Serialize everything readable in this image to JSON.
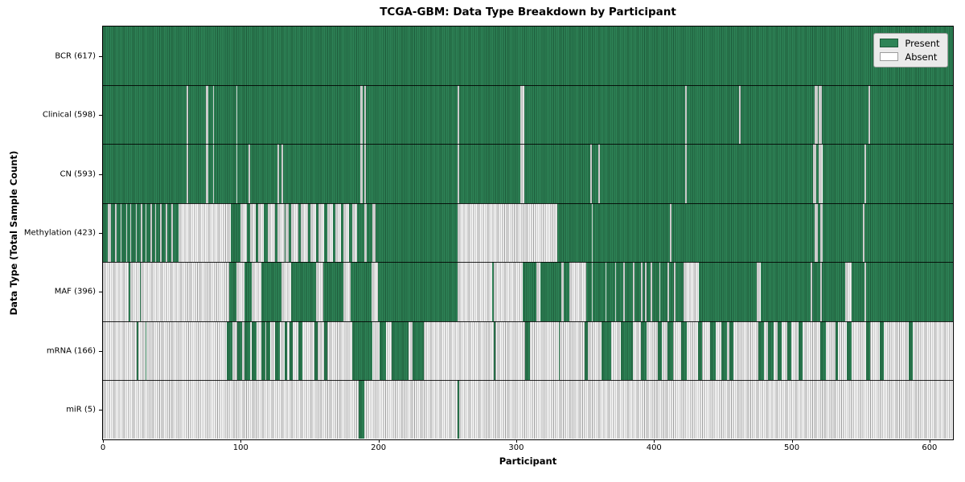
{
  "figure": {
    "title": "TCGA-GBM: Data Type Breakdown by Participant",
    "xlabel": "Participant",
    "ylabel": "Data Type (Total Sample Count)"
  },
  "legend": {
    "items": [
      {
        "label": "Present",
        "color": "#2e8457"
      },
      {
        "label": "Absent",
        "color": "#ffffff"
      }
    ]
  },
  "colors": {
    "present_fill": "#2e8457",
    "present_edge": "#1d5a3a",
    "absent_fill": "#ffffff",
    "absent_edge": "#9b9b9b",
    "row_separator": "#000000",
    "legend_bg": "#eaeaea"
  },
  "chart_data": {
    "type": "heatmap",
    "title": "TCGA-GBM: Data Type Breakdown by Participant",
    "xlabel": "Participant",
    "ylabel": "Data Type (Total Sample Count)",
    "legend": [
      "Present",
      "Absent"
    ],
    "legend_position": "upper right",
    "grid": false,
    "n_participants": 617,
    "xlim": [
      0,
      617
    ],
    "x_ticks": [
      0,
      100,
      200,
      300,
      400,
      500,
      600
    ],
    "runs_note": "runs are [start,end) participant index ranges of the state OPPOSITE to base; all other cells are the base state",
    "rows": [
      {
        "label": "BCR (617)",
        "data_type": "BCR",
        "present_count": 617,
        "base": "present",
        "runs": []
      },
      {
        "label": "Clinical (598)",
        "data_type": "Clinical",
        "present_count": 598,
        "base": "present",
        "runs": [
          [
            61,
            62
          ],
          [
            75,
            77
          ],
          [
            80,
            81
          ],
          [
            97,
            98
          ],
          [
            187,
            189
          ],
          [
            190,
            191
          ],
          [
            258,
            259
          ],
          [
            303,
            306
          ],
          [
            423,
            424
          ],
          [
            462,
            463
          ],
          [
            517,
            519
          ],
          [
            520,
            522
          ],
          [
            556,
            557
          ]
        ]
      },
      {
        "label": "CN (593)",
        "data_type": "CN",
        "present_count": 593,
        "base": "present",
        "runs": [
          [
            61,
            62
          ],
          [
            75,
            77
          ],
          [
            80,
            81
          ],
          [
            97,
            98
          ],
          [
            106,
            107
          ],
          [
            127,
            128
          ],
          [
            130,
            131
          ],
          [
            187,
            189
          ],
          [
            190,
            191
          ],
          [
            258,
            259
          ],
          [
            303,
            306
          ],
          [
            354,
            355
          ],
          [
            360,
            361
          ],
          [
            423,
            424
          ],
          [
            516,
            518
          ],
          [
            520,
            523
          ],
          [
            553,
            554
          ]
        ]
      },
      {
        "label": "Methylation (423)",
        "data_type": "Methylation",
        "present_count": 423,
        "base": "present",
        "runs": [
          [
            4,
            6
          ],
          [
            9,
            10
          ],
          [
            13,
            14
          ],
          [
            17,
            18
          ],
          [
            20,
            21
          ],
          [
            24,
            25
          ],
          [
            28,
            29
          ],
          [
            31,
            32
          ],
          [
            35,
            36
          ],
          [
            38,
            39
          ],
          [
            42,
            43
          ],
          [
            46,
            47
          ],
          [
            50,
            51
          ],
          [
            55,
            93
          ],
          [
            100,
            105
          ],
          [
            107,
            111
          ],
          [
            113,
            117
          ],
          [
            120,
            125
          ],
          [
            127,
            132
          ],
          [
            133,
            135
          ],
          [
            137,
            142
          ],
          [
            144,
            149
          ],
          [
            151,
            155
          ],
          [
            157,
            161
          ],
          [
            163,
            167
          ],
          [
            169,
            173
          ],
          [
            175,
            179
          ],
          [
            181,
            185
          ],
          [
            190,
            192
          ],
          [
            196,
            198
          ],
          [
            258,
            330
          ],
          [
            355,
            356
          ],
          [
            412,
            413
          ],
          [
            517,
            519
          ],
          [
            521,
            523
          ],
          [
            552,
            553
          ]
        ]
      },
      {
        "label": "MAF (396)",
        "data_type": "MAF",
        "present_count": 396,
        "base": "present",
        "runs": [
          [
            0,
            19
          ],
          [
            20,
            27
          ],
          [
            28,
            92
          ],
          [
            97,
            103
          ],
          [
            108,
            115
          ],
          [
            130,
            137
          ],
          [
            155,
            160
          ],
          [
            175,
            180
          ],
          [
            195,
            200
          ],
          [
            258,
            283
          ],
          [
            284,
            305
          ],
          [
            315,
            318
          ],
          [
            333,
            335
          ],
          [
            339,
            351
          ],
          [
            355,
            356
          ],
          [
            365,
            366
          ],
          [
            372,
            373
          ],
          [
            378,
            379
          ],
          [
            385,
            386
          ],
          [
            391,
            392
          ],
          [
            394,
            395
          ],
          [
            398,
            399
          ],
          [
            404,
            405
          ],
          [
            410,
            411
          ],
          [
            415,
            416
          ],
          [
            422,
            433
          ],
          [
            475,
            478
          ],
          [
            514,
            515
          ],
          [
            521,
            522
          ],
          [
            539,
            544
          ],
          [
            553,
            554
          ]
        ]
      },
      {
        "label": "mRNA (166)",
        "data_type": "mRNA",
        "present_count": 166,
        "base": "absent",
        "runs": [
          [
            25,
            26
          ],
          [
            31,
            32
          ],
          [
            90,
            94
          ],
          [
            98,
            101
          ],
          [
            103,
            107
          ],
          [
            108,
            112
          ],
          [
            115,
            118
          ],
          [
            119,
            122
          ],
          [
            125,
            129
          ],
          [
            132,
            134
          ],
          [
            136,
            138
          ],
          [
            142,
            145
          ],
          [
            154,
            156
          ],
          [
            161,
            163
          ],
          [
            181,
            196
          ],
          [
            201,
            206
          ],
          [
            210,
            222
          ],
          [
            225,
            233
          ],
          [
            284,
            285
          ],
          [
            307,
            310
          ],
          [
            331,
            332
          ],
          [
            350,
            352
          ],
          [
            362,
            369
          ],
          [
            376,
            385
          ],
          [
            391,
            395
          ],
          [
            403,
            406
          ],
          [
            410,
            414
          ],
          [
            420,
            424
          ],
          [
            432,
            435
          ],
          [
            441,
            445
          ],
          [
            449,
            453
          ],
          [
            455,
            458
          ],
          [
            476,
            480
          ],
          [
            483,
            487
          ],
          [
            490,
            493
          ],
          [
            497,
            500
          ],
          [
            505,
            508
          ],
          [
            521,
            525
          ],
          [
            532,
            534
          ],
          [
            540,
            544
          ],
          [
            554,
            557
          ],
          [
            564,
            567
          ],
          [
            585,
            588
          ]
        ]
      },
      {
        "label": "miR (5)",
        "data_type": "miR",
        "present_count": 5,
        "base": "absent",
        "runs": [
          [
            186,
            190
          ],
          [
            258,
            259
          ]
        ]
      }
    ]
  }
}
